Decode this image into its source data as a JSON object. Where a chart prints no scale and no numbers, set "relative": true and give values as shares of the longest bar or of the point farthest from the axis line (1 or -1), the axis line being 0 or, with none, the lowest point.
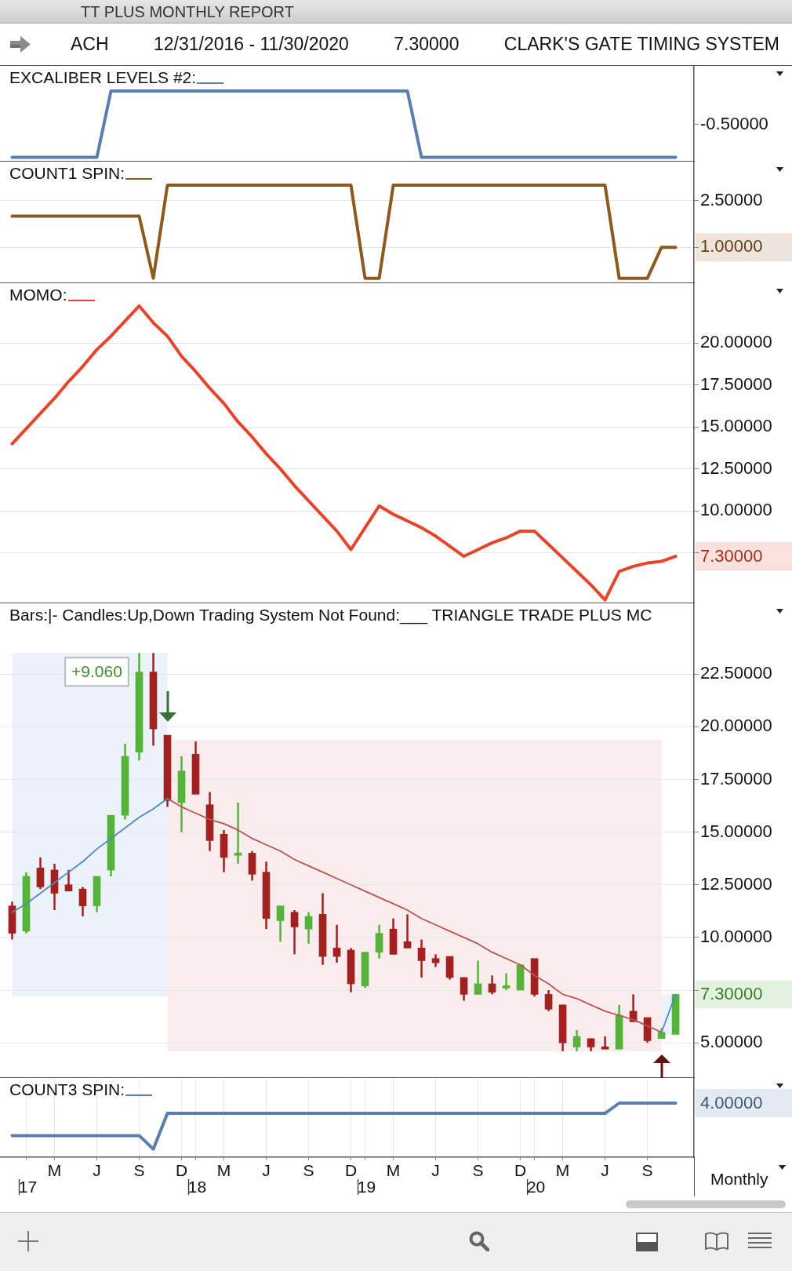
{
  "chart_data": [
    {
      "type": "other",
      "title": "TT PLUS MONTHLY REPORT",
      "annotations": [
        "ACH",
        "12/31/2016 - 11/30/2020",
        "7.30000",
        "CLARK'S GATE TIMING SYSTEM"
      ]
    },
    {
      "type": "line",
      "relative": true,
      "legend": "top left",
      "tick_labels": false,
      "categories": [
        null,
        null,
        null,
        null,
        null,
        null,
        null,
        null,
        null,
        null,
        null,
        null,
        null,
        null,
        null,
        null,
        null,
        null,
        null,
        null,
        null,
        null,
        null,
        null,
        null,
        null,
        null,
        null,
        null,
        null,
        null,
        null,
        null,
        null,
        null,
        null,
        null,
        null,
        null,
        null,
        null,
        null,
        null,
        null,
        null,
        null,
        null,
        null
      ],
      "series": [
        {
          "name": "EXCALIBER LEVELS #2:",
          "color": "#5a7fae",
          "values": [
            0.06,
            0.06,
            0.06,
            0.06,
            0.06,
            0.06,
            0.06,
            1,
            1,
            1,
            1,
            1,
            1,
            1,
            1,
            1,
            1,
            1,
            1,
            1,
            1,
            1,
            1,
            1,
            1,
            1,
            1,
            1,
            1,
            0.06,
            0.06,
            0.06,
            0.06,
            0.06,
            0.06,
            0.06,
            0.06,
            0.06,
            0.06,
            0.06,
            0.06,
            0.06,
            0.06,
            0.06,
            0.06,
            0.06,
            0.06,
            0.06
          ]
        }
      ],
      "annotations": [
        "-0.50000"
      ]
    },
    {
      "type": "line",
      "legend": "top left",
      "grid": "y",
      "tick_labels": "y",
      "categories": [
        null,
        null,
        null,
        null,
        null,
        null,
        null,
        null,
        null,
        null,
        null,
        null,
        null,
        null,
        null,
        null,
        null,
        null,
        null,
        null,
        null,
        null,
        null,
        null,
        null,
        null,
        null,
        null,
        null,
        null,
        null,
        null,
        null,
        null,
        null,
        null,
        null,
        null,
        null,
        null,
        null,
        null,
        null,
        null,
        null,
        null,
        null,
        null
      ],
      "ylim": [
        -0.16,
        3.76
      ],
      "yticks": [
        {
          "value": 1,
          "label": "1.00000"
        },
        {
          "value": 2.5,
          "label": "2.50000"
        }
      ],
      "series": [
        {
          "name": "COUNT1 SPIN:",
          "color": "#8c5a1f",
          "values": [
            2,
            2,
            2,
            2,
            2,
            2,
            2,
            2,
            2,
            2,
            0,
            3,
            3,
            3,
            3,
            3,
            3,
            3,
            3,
            3,
            3,
            3,
            3,
            3,
            3,
            0,
            0,
            3,
            3,
            3,
            3,
            3,
            3,
            3,
            3,
            3,
            3,
            3,
            3,
            3,
            3,
            3,
            3,
            0,
            0,
            0,
            1,
            1
          ]
        }
      ]
    },
    {
      "type": "line",
      "legend": "top left",
      "grid": "y",
      "tick_labels": "y",
      "categories": [
        null,
        null,
        null,
        null,
        null,
        null,
        null,
        null,
        null,
        null,
        null,
        null,
        null,
        null,
        null,
        null,
        null,
        null,
        null,
        null,
        null,
        null,
        null,
        null,
        null,
        null,
        null,
        null,
        null,
        null,
        null,
        null,
        null,
        null,
        null,
        null,
        null,
        null,
        null,
        null,
        null,
        null,
        null,
        null,
        null,
        null,
        null,
        null
      ],
      "ylim": [
        4.5,
        23.55
      ],
      "yticks": [
        {
          "value": 7.5,
          "label": null
        },
        {
          "value": 10,
          "label": "10.00000"
        },
        {
          "value": 12.5,
          "label": "12.50000"
        },
        {
          "value": 15,
          "label": "15.00000"
        },
        {
          "value": 17.5,
          "label": "17.50000"
        },
        {
          "value": 20,
          "label": "20.00000"
        }
      ],
      "series": [
        {
          "name": "MOMO:",
          "color": "#e8442a",
          "values": [
            14.0,
            14.9,
            15.8,
            16.7,
            17.7,
            18.6,
            19.6,
            20.4,
            21.3,
            22.2,
            21.2,
            20.4,
            19.2,
            18.3,
            17.3,
            16.4,
            15.3,
            14.4,
            13.4,
            12.5,
            11.5,
            10.6,
            9.7,
            8.8,
            7.7,
            9.0,
            10.3,
            9.8,
            9.4,
            9.0,
            8.5,
            7.9,
            7.3,
            7.7,
            8.1,
            8.4,
            8.8,
            8.8,
            8.0,
            7.2,
            6.4,
            5.6,
            4.7,
            6.4,
            6.7,
            6.9,
            7.0,
            7.3
          ],
          "value_labels": [
            null,
            null,
            null,
            null,
            null,
            null,
            null,
            null,
            null,
            null,
            null,
            null,
            null,
            null,
            null,
            null,
            null,
            null,
            null,
            null,
            null,
            null,
            null,
            null,
            null,
            null,
            null,
            null,
            null,
            null,
            null,
            null,
            null,
            null,
            null,
            null,
            null,
            null,
            null,
            null,
            null,
            null,
            null,
            null,
            null,
            null,
            null,
            "7.30000"
          ]
        }
      ]
    },
    {
      "type": "candlestick",
      "title": "Bars:|- Candles:Up,Down Trading System Not Found:___ TRIANGLE TRADE PLUS MC",
      "grid": "y",
      "tick_labels": "y",
      "categories": [
        null,
        null,
        null,
        null,
        null,
        null,
        null,
        null,
        null,
        null,
        null,
        null,
        null,
        null,
        null,
        null,
        null,
        null,
        null,
        null,
        null,
        null,
        null,
        null,
        null,
        null,
        null,
        null,
        null,
        null,
        null,
        null,
        null,
        null,
        null,
        null,
        null,
        null,
        null,
        null,
        null,
        null,
        null,
        null,
        null,
        null,
        null,
        null
      ],
      "ohlc": [
        [
          11.5,
          11.7,
          9.9,
          10.2
        ],
        [
          10.3,
          13.1,
          10.2,
          12.9
        ],
        [
          13.3,
          13.8,
          12.3,
          12.4
        ],
        [
          13.2,
          13.5,
          11.3,
          12.1
        ],
        [
          12.5,
          13.2,
          12.2,
          12.2
        ],
        [
          12.3,
          12.4,
          11.0,
          11.5
        ],
        [
          11.5,
          12.9,
          11.2,
          12.9
        ],
        [
          13.2,
          15.8,
          12.9,
          15.8
        ],
        [
          15.8,
          19.2,
          15.6,
          18.6
        ],
        [
          18.8,
          23.5,
          18.4,
          22.6
        ],
        [
          22.6,
          23.5,
          19.1,
          19.9
        ],
        [
          19.6,
          19.6,
          16.2,
          16.5
        ],
        [
          16.4,
          18.6,
          15.0,
          17.9
        ],
        [
          18.7,
          19.3,
          16.8,
          16.8
        ],
        [
          16.3,
          16.9,
          14.1,
          14.6
        ],
        [
          14.9,
          15.1,
          13.1,
          13.8
        ],
        [
          13.9,
          16.4,
          13.5,
          14.0
        ],
        [
          14.0,
          14.1,
          12.7,
          13.0
        ],
        [
          13.1,
          13.6,
          10.4,
          10.9
        ],
        [
          10.8,
          11.5,
          9.8,
          11.5
        ],
        [
          11.2,
          11.3,
          9.2,
          10.5
        ],
        [
          10.4,
          11.2,
          9.7,
          11.0
        ],
        [
          11.1,
          12.1,
          8.7,
          9.1
        ],
        [
          9.5,
          10.6,
          8.8,
          9.1
        ],
        [
          9.4,
          9.5,
          7.4,
          7.8
        ],
        [
          7.7,
          9.3,
          7.6,
          9.3
        ],
        [
          9.3,
          10.6,
          9.0,
          10.2
        ],
        [
          10.4,
          10.9,
          9.2,
          9.2
        ],
        [
          9.8,
          11.1,
          9.5,
          9.5
        ],
        [
          9.5,
          9.9,
          8.1,
          8.9
        ],
        [
          9.0,
          9.2,
          8.6,
          8.8
        ],
        [
          9.1,
          9.1,
          8.0,
          8.1
        ],
        [
          8.1,
          8.1,
          7.0,
          7.3
        ],
        [
          7.3,
          8.9,
          7.3,
          7.8
        ],
        [
          7.8,
          8.2,
          7.3,
          7.4
        ],
        [
          7.6,
          8.3,
          7.5,
          7.7
        ],
        [
          7.5,
          8.7,
          7.5,
          8.7
        ],
        [
          9.0,
          9.0,
          7.2,
          7.3
        ],
        [
          7.3,
          7.5,
          6.5,
          6.6
        ],
        [
          6.8,
          6.8,
          4.6,
          5.0
        ],
        [
          4.8,
          5.6,
          4.6,
          5.3
        ],
        [
          5.2,
          5.2,
          4.6,
          4.8
        ],
        [
          4.8,
          5.3,
          4.7,
          4.7
        ],
        [
          4.7,
          6.8,
          4.7,
          6.3
        ],
        [
          6.5,
          7.3,
          6.0,
          6.0
        ],
        [
          6.2,
          6.2,
          5.0,
          5.1
        ],
        [
          5.2,
          5.7,
          5.2,
          5.5
        ],
        [
          5.4,
          7.3,
          5.4,
          7.3
        ]
      ],
      "colors": [
        "#a32020",
        "#55b33a",
        "#a32020",
        "#a32020",
        "#a32020",
        "#a32020",
        "#55b33a",
        "#55b33a",
        "#55b33a",
        "#55b33a",
        "#a32020",
        "#a32020",
        "#55b33a",
        "#a32020",
        "#a32020",
        "#a32020",
        "#55b33a",
        "#a32020",
        "#a32020",
        "#55b33a",
        "#a32020",
        "#55b33a",
        "#a32020",
        "#a32020",
        "#a32020",
        "#55b33a",
        "#55b33a",
        "#a32020",
        "#a32020",
        "#a32020",
        "#a32020",
        "#a32020",
        "#a32020",
        "#55b33a",
        "#a32020",
        "#55b33a",
        "#55b33a",
        "#a32020",
        "#a32020",
        "#a32020",
        "#55b33a",
        "#a32020",
        "#a32020",
        "#55b33a",
        "#a32020",
        "#a32020",
        "#55b33a",
        "#55b33a"
      ],
      "value_labels": [
        null,
        null,
        null,
        null,
        null,
        null,
        null,
        null,
        null,
        null,
        null,
        null,
        null,
        null,
        null,
        null,
        null,
        null,
        null,
        null,
        null,
        null,
        null,
        null,
        null,
        null,
        null,
        null,
        null,
        null,
        null,
        null,
        null,
        null,
        null,
        null,
        null,
        null,
        null,
        null,
        null,
        null,
        null,
        null,
        null,
        null,
        null,
        "7.30000"
      ],
      "series": [
        {
          "type": "line",
          "color": "#4b88c4",
          "values": [
            11.2,
            11.6,
            12.1,
            12.6,
            13.1,
            13.6,
            14.2,
            14.7,
            15.2,
            15.7,
            16.1,
            16.6,
            null,
            null,
            null,
            null,
            null,
            null,
            null,
            null,
            null,
            null,
            null,
            null,
            null,
            null,
            null,
            null,
            null,
            null,
            null,
            null,
            null,
            null,
            null,
            null,
            null,
            null,
            null,
            null,
            null,
            null,
            null,
            null,
            null,
            null,
            null,
            null
          ],
          "lower": [
            7.2,
            7.2,
            7.2,
            7.2,
            7.2,
            7.2,
            7.2,
            7.2,
            7.2,
            7.2,
            7.2,
            7.2,
            null,
            null,
            null,
            null,
            null,
            null,
            null,
            null,
            null,
            null,
            null,
            null,
            null,
            null,
            null,
            null,
            null,
            null,
            null,
            null,
            null,
            null,
            null,
            null,
            null,
            null,
            null,
            null,
            null,
            null,
            null,
            null,
            null,
            null,
            null,
            null
          ],
          "upper": [
            23.5,
            23.5,
            23.5,
            23.5,
            23.5,
            23.5,
            23.5,
            23.5,
            23.5,
            23.5,
            23.5,
            23.5,
            null,
            null,
            null,
            null,
            null,
            null,
            null,
            null,
            null,
            null,
            null,
            null,
            null,
            null,
            null,
            null,
            null,
            null,
            null,
            null,
            null,
            null,
            null,
            null,
            null,
            null,
            null,
            null,
            null,
            null,
            null,
            null,
            null,
            null,
            null,
            null
          ]
        },
        {
          "type": "line",
          "color": "#bc5250",
          "values": [
            null,
            null,
            null,
            null,
            null,
            null,
            null,
            null,
            null,
            null,
            null,
            16.6,
            16.2,
            15.9,
            15.6,
            15.4,
            15.1,
            14.7,
            14.4,
            14.1,
            13.7,
            13.4,
            13.1,
            12.8,
            12.5,
            12.2,
            11.9,
            11.6,
            11.3,
            10.9,
            10.6,
            10.3,
            10.0,
            9.7,
            9.3,
            9.0,
            8.7,
            8.2,
            7.8,
            7.3,
            7.1,
            6.8,
            6.5,
            6.3,
            6.1,
            5.8,
            5.5,
            null
          ],
          "lower": [
            null,
            null,
            null,
            null,
            null,
            null,
            null,
            null,
            null,
            null,
            null,
            4.6,
            4.6,
            4.6,
            4.6,
            4.6,
            4.6,
            4.6,
            4.6,
            4.6,
            4.6,
            4.6,
            4.6,
            4.6,
            4.6,
            4.6,
            4.6,
            4.6,
            4.6,
            4.6,
            4.6,
            4.6,
            4.6,
            4.6,
            4.6,
            4.6,
            4.6,
            4.6,
            4.6,
            4.6,
            4.6,
            4.6,
            4.6,
            4.6,
            4.6,
            4.6,
            4.6,
            null
          ],
          "upper": [
            null,
            null,
            null,
            null,
            null,
            null,
            null,
            null,
            null,
            null,
            null,
            19.4,
            19.4,
            19.4,
            19.4,
            19.4,
            19.4,
            19.4,
            19.4,
            19.4,
            19.4,
            19.4,
            19.4,
            19.4,
            19.4,
            19.4,
            19.4,
            19.4,
            19.4,
            19.4,
            19.4,
            19.4,
            19.4,
            19.4,
            19.4,
            19.4,
            19.4,
            19.4,
            19.4,
            19.4,
            19.4,
            19.4,
            19.4,
            19.4,
            19.4,
            19.4,
            19.4,
            null
          ]
        },
        {
          "type": "line",
          "color": "#4b88c4",
          "values": [
            null,
            null,
            null,
            null,
            null,
            null,
            null,
            null,
            null,
            null,
            null,
            null,
            null,
            null,
            null,
            null,
            null,
            null,
            null,
            null,
            null,
            null,
            null,
            null,
            null,
            null,
            null,
            null,
            null,
            null,
            null,
            null,
            null,
            null,
            null,
            null,
            null,
            null,
            null,
            null,
            null,
            null,
            null,
            null,
            null,
            null,
            5.5,
            7.3
          ],
          "lower": [
            null,
            null,
            null,
            null,
            null,
            null,
            null,
            null,
            null,
            null,
            null,
            null,
            null,
            null,
            null,
            null,
            null,
            null,
            null,
            null,
            null,
            null,
            null,
            null,
            null,
            null,
            null,
            null,
            null,
            null,
            null,
            null,
            null,
            null,
            null,
            null,
            null,
            null,
            null,
            null,
            null,
            null,
            null,
            null,
            null,
            null,
            5.4,
            5.4
          ],
          "upper": [
            null,
            null,
            null,
            null,
            null,
            null,
            null,
            null,
            null,
            null,
            null,
            null,
            null,
            null,
            null,
            null,
            null,
            null,
            null,
            null,
            null,
            null,
            null,
            null,
            null,
            null,
            null,
            null,
            null,
            null,
            null,
            null,
            null,
            null,
            null,
            null,
            null,
            null,
            null,
            null,
            null,
            null,
            null,
            null,
            null,
            null,
            7.3,
            7.3
          ]
        }
      ],
      "annotations": [
        "+9.060"
      ],
      "ylim": [
        3.33,
        25.86
      ],
      "yticks": [
        {
          "value": 5,
          "label": "5.00000"
        },
        {
          "value": 7.5,
          "label": null
        },
        {
          "value": 10,
          "label": "10.00000"
        },
        {
          "value": 12.5,
          "label": "12.50000"
        },
        {
          "value": 15,
          "label": "15.00000"
        },
        {
          "value": 17.5,
          "label": "17.50000"
        },
        {
          "value": 20,
          "label": "20.00000"
        },
        {
          "value": 22.5,
          "label": "22.50000"
        }
      ]
    },
    {
      "type": "line",
      "relative": true,
      "legend": "top left",
      "grid": "x",
      "tick_labels": "x",
      "categories": [
        null,
        "17",
        null,
        "M",
        null,
        null,
        "J",
        null,
        null,
        "S",
        null,
        null,
        "D",
        "18",
        null,
        "M",
        null,
        null,
        "J",
        null,
        null,
        "S",
        null,
        null,
        "D",
        "19",
        null,
        "M",
        null,
        null,
        "J",
        null,
        null,
        "S",
        null,
        null,
        "D",
        "20",
        null,
        "M",
        null,
        null,
        "J",
        null,
        null,
        "S",
        null,
        null
      ],
      "series": [
        {
          "name": "COUNT3 SPIN:",
          "color": "#5a7fae",
          "values": [
            0.4,
            0.4,
            0.4,
            0.4,
            0.4,
            0.4,
            0.4,
            0.4,
            0.4,
            0.4,
            0.15,
            0.81,
            0.81,
            0.81,
            0.81,
            0.81,
            0.81,
            0.81,
            0.81,
            0.81,
            0.81,
            0.81,
            0.81,
            0.81,
            0.81,
            0.81,
            0.81,
            0.81,
            0.81,
            0.81,
            0.81,
            0.81,
            0.81,
            0.81,
            0.81,
            0.81,
            0.81,
            0.81,
            0.81,
            0.81,
            0.81,
            0.81,
            0.81,
            1,
            1,
            1,
            1,
            1
          ]
        }
      ],
      "annotations": [
        "4.00000",
        "Monthly"
      ]
    }
  ]
}
